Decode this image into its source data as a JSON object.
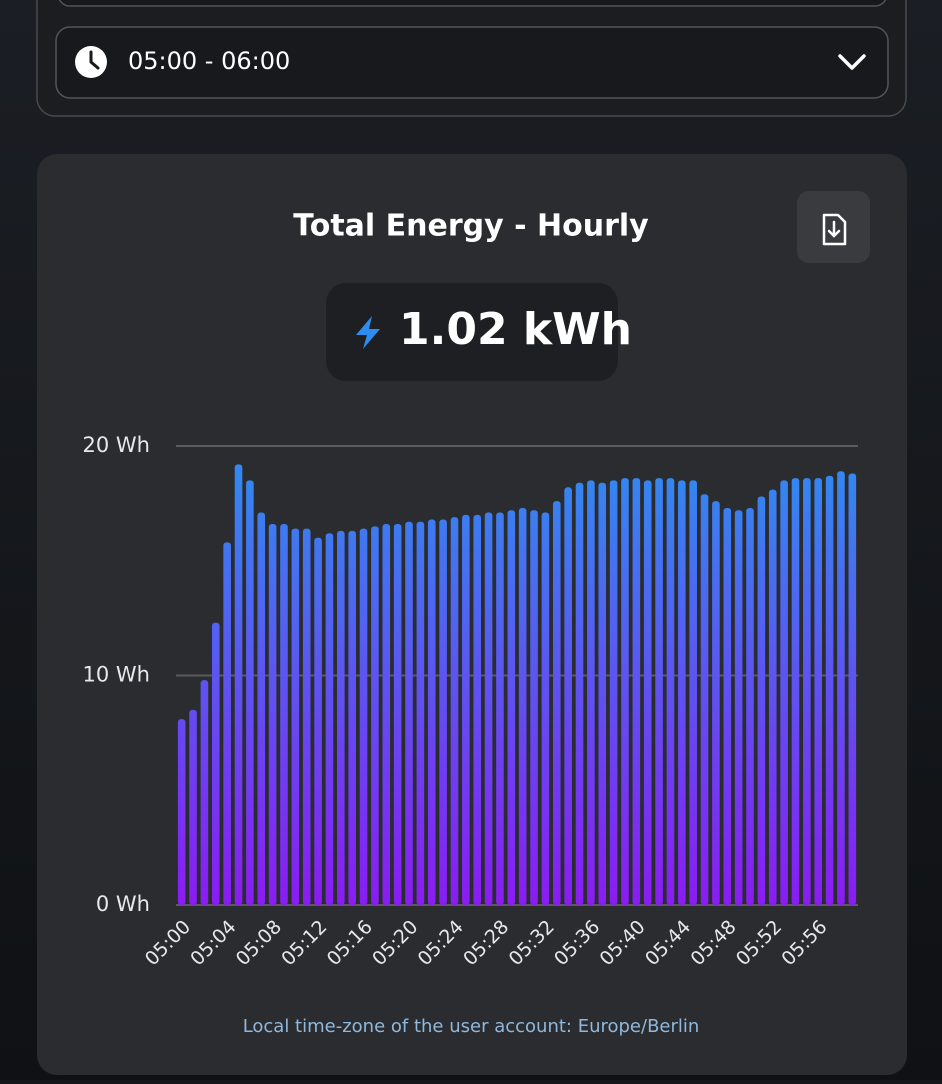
{
  "header": {
    "time_range": "05:00 - 06:00"
  },
  "chart_data": {
    "type": "bar",
    "title": "Total Energy - Hourly",
    "total": "1.02 kWh",
    "footnote": "Local time-zone of the user account: Europe/Berlin",
    "categories": [
      "05:00",
      null,
      null,
      null,
      "05:04",
      null,
      null,
      null,
      "05:08",
      null,
      null,
      null,
      "05:12",
      null,
      null,
      null,
      "05:16",
      null,
      null,
      null,
      "05:20",
      null,
      null,
      null,
      "05:24",
      null,
      null,
      null,
      "05:28",
      null,
      null,
      null,
      "05:32",
      null,
      null,
      null,
      "05:36",
      null,
      null,
      null,
      "05:40",
      null,
      null,
      null,
      "05:44",
      null,
      null,
      null,
      "05:48",
      null,
      null,
      null,
      "05:52",
      null,
      null,
      null,
      "05:56",
      null,
      null,
      null
    ],
    "values": [
      8.1,
      8.5,
      9.8,
      12.3,
      15.8,
      19.2,
      18.5,
      17.1,
      16.6,
      16.6,
      16.4,
      16.4,
      16.0,
      16.2,
      16.3,
      16.3,
      16.4,
      16.5,
      16.6,
      16.6,
      16.7,
      16.7,
      16.8,
      16.8,
      16.9,
      17.0,
      17.0,
      17.1,
      17.1,
      17.2,
      17.3,
      17.2,
      17.1,
      17.6,
      18.2,
      18.4,
      18.5,
      18.4,
      18.5,
      18.6,
      18.6,
      18.5,
      18.6,
      18.6,
      18.5,
      18.5,
      17.9,
      17.6,
      17.3,
      17.2,
      17.3,
      17.8,
      18.1,
      18.5,
      18.6,
      18.6,
      18.6,
      18.7,
      18.9,
      18.8
    ],
    "colors": [
      "#2e8ef0",
      "#8a1cf2"
    ],
    "ylim": [
      0,
      20
    ],
    "yticks": [
      {
        "value": 0,
        "label": "0 Wh"
      },
      {
        "value": 10,
        "label": "10 Wh"
      },
      {
        "value": 20,
        "label": "20 Wh"
      }
    ],
    "grid": true
  }
}
